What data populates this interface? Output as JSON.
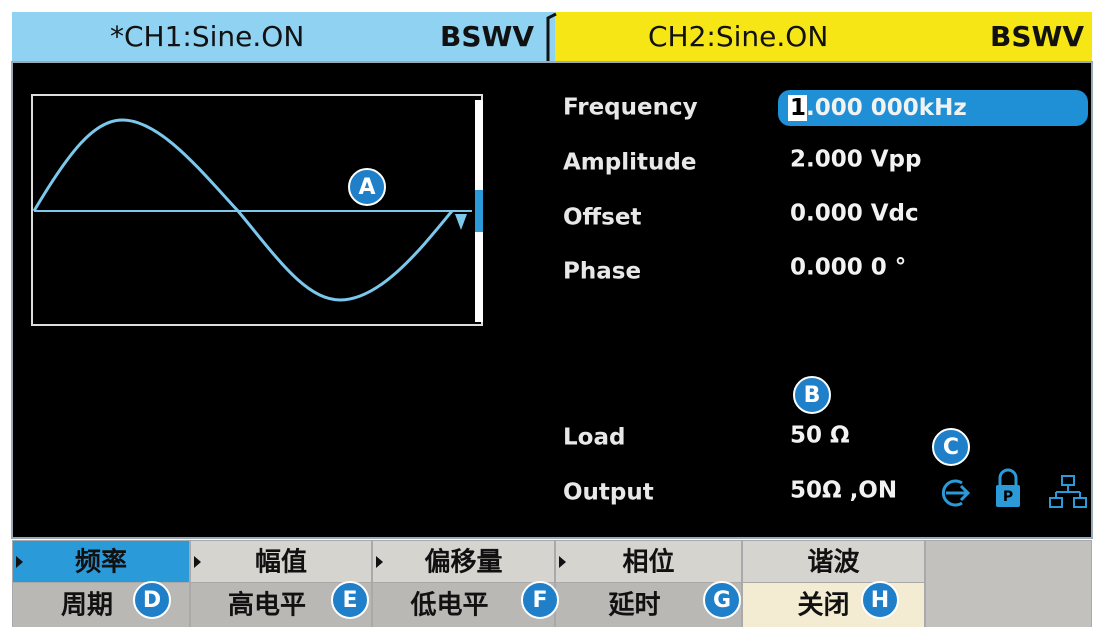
{
  "tabs": [
    {
      "label": "*CH1:Sine.ON",
      "mode": "BSWV"
    },
    {
      "label": "CH2:Sine.ON",
      "mode": "BSWV"
    }
  ],
  "parameters": [
    {
      "label": "Frequency",
      "cursor": "1",
      "value": ".000 000kHz"
    },
    {
      "label": "Amplitude",
      "value": "2.000 Vpp"
    },
    {
      "label": "Offset",
      "value": "0.000 Vdc"
    },
    {
      "label": "Phase",
      "value": "0.000 0 °"
    }
  ],
  "load": {
    "label": "Load",
    "value": "50 Ω"
  },
  "output": {
    "label": "Output",
    "value": "50Ω ,ON"
  },
  "callouts": [
    "A",
    "B",
    "C",
    "D",
    "E",
    "F",
    "G",
    "H"
  ],
  "menu": [
    {
      "top": "频率",
      "bottom": "周期"
    },
    {
      "top": "幅值",
      "bottom": "高电平"
    },
    {
      "top": "偏移量",
      "bottom": "低电平"
    },
    {
      "top": "相位",
      "bottom": "延时"
    },
    {
      "top": "谐波",
      "bottom": "关闭"
    }
  ]
}
